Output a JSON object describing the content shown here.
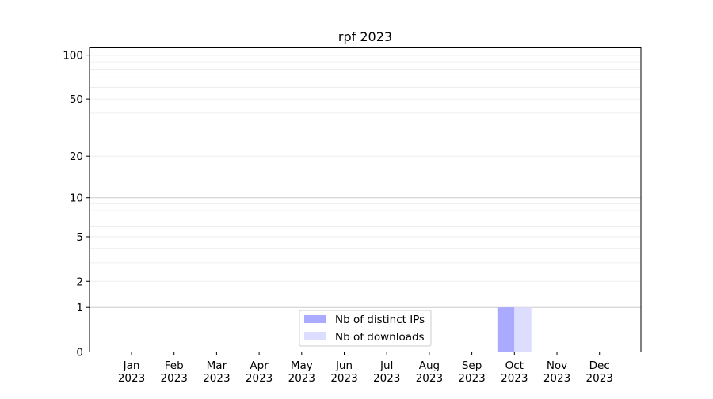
{
  "chart_data": {
    "type": "bar",
    "title": "rpf 2023",
    "xlabel": "",
    "ylabel": "",
    "y_scale": "log(1+y)",
    "ylim": [
      0,
      112
    ],
    "grid": "horizontal, major and minor",
    "legend_placement": "bottom-center",
    "categories": [
      "Jan\n2023",
      "Feb\n2023",
      "Mar\n2023",
      "Apr\n2023",
      "May\n2023",
      "Jun\n2023",
      "Jul\n2023",
      "Aug\n2023",
      "Sep\n2023",
      "Oct\n2023",
      "Nov\n2023",
      "Dec\n2023"
    ],
    "y_ticks": [
      0,
      1,
      2,
      5,
      10,
      20,
      50,
      100
    ],
    "series": [
      {
        "name": "Nb of distinct IPs",
        "color": "#aaaaff",
        "values": [
          0,
          0,
          0,
          0,
          0,
          0,
          0,
          0,
          0,
          1,
          0,
          0
        ]
      },
      {
        "name": "Nb of downloads",
        "color": "#ddddff",
        "values": [
          0,
          0,
          0,
          0,
          0,
          0,
          0,
          0,
          0,
          1,
          0,
          0
        ]
      }
    ]
  }
}
